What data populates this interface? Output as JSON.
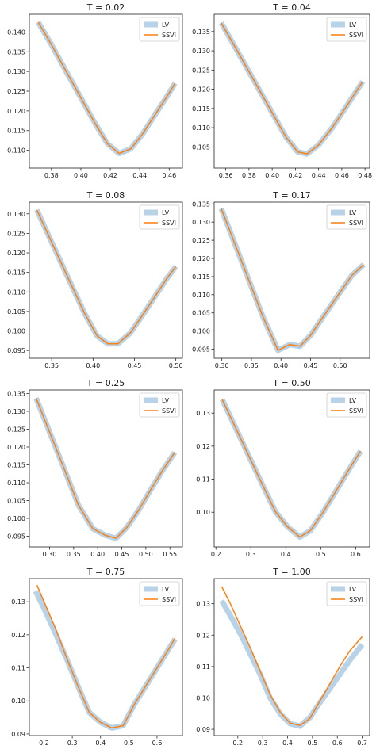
{
  "colors": {
    "lv": "#b8d3e8",
    "ssvi": "#ff7f0e",
    "axis": "#222222",
    "legend_border": "#cccccc"
  },
  "legend": {
    "lv": "LV",
    "ssvi": "SSVI"
  },
  "chart_data": [
    {
      "type": "line",
      "title": "T = 0.02",
      "xlim": [
        0.365,
        0.469
      ],
      "ylim": [
        0.1055,
        0.1445
      ],
      "xticks": [
        0.38,
        0.4,
        0.42,
        0.44,
        0.46
      ],
      "xticklabels": [
        "0.38",
        "0.40",
        "0.42",
        "0.44",
        "0.46"
      ],
      "yticks": [
        0.11,
        0.115,
        0.12,
        0.125,
        0.13,
        0.135,
        0.14
      ],
      "yticklabels": [
        "0.110",
        "0.115",
        "0.120",
        "0.125",
        "0.130",
        "0.135",
        "0.140"
      ],
      "series": [
        {
          "name": "LV",
          "x": [
            0.371,
            0.38,
            0.39,
            0.4,
            0.41,
            0.418,
            0.426,
            0.434,
            0.442,
            0.45,
            0.458,
            0.464
          ],
          "y": [
            0.1425,
            0.1368,
            0.13,
            0.1233,
            0.1166,
            0.1117,
            0.1092,
            0.1104,
            0.1142,
            0.1188,
            0.1234,
            0.127
          ]
        },
        {
          "name": "SSVI",
          "x": [
            0.371,
            0.38,
            0.39,
            0.4,
            0.41,
            0.418,
            0.426,
            0.434,
            0.442,
            0.45,
            0.458,
            0.464
          ],
          "y": [
            0.1425,
            0.1368,
            0.13,
            0.1233,
            0.1166,
            0.1117,
            0.1092,
            0.1104,
            0.1142,
            0.1188,
            0.1234,
            0.127
          ]
        }
      ]
    },
    {
      "type": "line",
      "title": "T = 0.04",
      "xlim": [
        0.35,
        0.484
      ],
      "ylim": [
        0.0995,
        0.1395
      ],
      "xticks": [
        0.36,
        0.38,
        0.4,
        0.42,
        0.44,
        0.46,
        0.48
      ],
      "xticklabels": [
        "0.36",
        "0.38",
        "0.40",
        "0.42",
        "0.44",
        "0.46",
        "0.48"
      ],
      "yticks": [
        0.105,
        0.11,
        0.115,
        0.12,
        0.125,
        0.13,
        0.135
      ],
      "yticklabels": [
        "0.105",
        "0.110",
        "0.115",
        "0.120",
        "0.125",
        "0.130",
        "0.135"
      ],
      "series": [
        {
          "name": "LV",
          "x": [
            0.356,
            0.37,
            0.385,
            0.4,
            0.412,
            0.422,
            0.43,
            0.44,
            0.452,
            0.465,
            0.478
          ],
          "y": [
            0.1373,
            0.1299,
            0.1219,
            0.1139,
            0.1075,
            0.1037,
            0.1032,
            0.1055,
            0.1101,
            0.116,
            0.122
          ]
        },
        {
          "name": "SSVI",
          "x": [
            0.356,
            0.37,
            0.385,
            0.4,
            0.412,
            0.422,
            0.43,
            0.44,
            0.452,
            0.465,
            0.478
          ],
          "y": [
            0.1373,
            0.1299,
            0.1219,
            0.1139,
            0.1075,
            0.1037,
            0.1032,
            0.1055,
            0.1101,
            0.116,
            0.122
          ]
        }
      ]
    },
    {
      "type": "line",
      "title": "T = 0.08",
      "xlim": [
        0.323,
        0.508
      ],
      "ylim": [
        0.093,
        0.133
      ],
      "xticks": [
        0.35,
        0.4,
        0.45,
        0.5
      ],
      "xticklabels": [
        "0.35",
        "0.40",
        "0.45",
        "0.50"
      ],
      "yticks": [
        0.095,
        0.1,
        0.105,
        0.11,
        0.115,
        0.12,
        0.125,
        0.13
      ],
      "yticklabels": [
        "0.095",
        "0.100",
        "0.105",
        "0.110",
        "0.115",
        "0.120",
        "0.125",
        "0.130"
      ],
      "series": [
        {
          "name": "LV",
          "x": [
            0.332,
            0.35,
            0.37,
            0.39,
            0.405,
            0.418,
            0.43,
            0.445,
            0.46,
            0.475,
            0.49,
            0.5
          ],
          "y": [
            0.131,
            0.1227,
            0.1135,
            0.1044,
            0.0987,
            0.0967,
            0.0967,
            0.0995,
            0.1041,
            0.1089,
            0.1137,
            0.1165
          ]
        },
        {
          "name": "SSVI",
          "x": [
            0.332,
            0.35,
            0.37,
            0.39,
            0.405,
            0.418,
            0.43,
            0.445,
            0.46,
            0.475,
            0.49,
            0.5
          ],
          "y": [
            0.131,
            0.1227,
            0.1135,
            0.1044,
            0.0987,
            0.0967,
            0.0967,
            0.0995,
            0.1041,
            0.1089,
            0.1137,
            0.1165
          ]
        }
      ]
    },
    {
      "type": "line",
      "title": "T = 0.17",
      "xlim": [
        0.287,
        0.55
      ],
      "ylim": [
        0.0925,
        0.1355
      ],
      "xticks": [
        0.3,
        0.35,
        0.4,
        0.45,
        0.5
      ],
      "xticklabels": [
        "0.30",
        "0.35",
        "0.40",
        "0.45",
        "0.50"
      ],
      "yticks": [
        0.095,
        0.1,
        0.105,
        0.11,
        0.115,
        0.12,
        0.125,
        0.13,
        0.135
      ],
      "yticklabels": [
        "0.095",
        "0.100",
        "0.105",
        "0.110",
        "0.115",
        "0.120",
        "0.125",
        "0.130",
        "0.135"
      ],
      "series": [
        {
          "name": "LV",
          "x": [
            0.299,
            0.32,
            0.345,
            0.37,
            0.395,
            0.415,
            0.432,
            0.45,
            0.47,
            0.495,
            0.52,
            0.54
          ],
          "y": [
            0.1337,
            0.1249,
            0.1143,
            0.1037,
            0.0947,
            0.0963,
            0.0958,
            0.0988,
            0.1036,
            0.1095,
            0.1153,
            0.1183
          ]
        },
        {
          "name": "SSVI",
          "x": [
            0.299,
            0.32,
            0.345,
            0.37,
            0.395,
            0.415,
            0.432,
            0.45,
            0.47,
            0.495,
            0.52,
            0.54
          ],
          "y": [
            0.1337,
            0.1249,
            0.1143,
            0.1037,
            0.0947,
            0.0963,
            0.0958,
            0.0988,
            0.1036,
            0.1095,
            0.1153,
            0.1183
          ]
        }
      ]
    },
    {
      "type": "line",
      "title": "T = 0.25",
      "xlim": [
        0.258,
        0.576
      ],
      "ylim": [
        0.092,
        0.136
      ],
      "xticks": [
        0.3,
        0.35,
        0.4,
        0.45,
        0.5,
        0.55
      ],
      "xticklabels": [
        "0.30",
        "0.35",
        "0.40",
        "0.45",
        "0.50",
        "0.55"
      ],
      "yticks": [
        0.095,
        0.1,
        0.105,
        0.11,
        0.115,
        0.12,
        0.125,
        0.13,
        0.135
      ],
      "yticklabels": [
        "0.095",
        "0.100",
        "0.105",
        "0.110",
        "0.115",
        "0.120",
        "0.125",
        "0.130",
        "0.135"
      ],
      "series": [
        {
          "name": "LV",
          "x": [
            0.272,
            0.3,
            0.33,
            0.36,
            0.39,
            0.415,
            0.438,
            0.46,
            0.485,
            0.51,
            0.535,
            0.56
          ],
          "y": [
            0.1337,
            0.1242,
            0.114,
            0.1037,
            0.0971,
            0.0953,
            0.0944,
            0.0974,
            0.1023,
            0.108,
            0.1135,
            0.1185
          ]
        },
        {
          "name": "SSVI",
          "x": [
            0.272,
            0.3,
            0.33,
            0.36,
            0.39,
            0.415,
            0.438,
            0.46,
            0.485,
            0.51,
            0.535,
            0.56
          ],
          "y": [
            0.1337,
            0.1242,
            0.114,
            0.1037,
            0.0971,
            0.0953,
            0.0944,
            0.0974,
            0.1023,
            0.108,
            0.1135,
            0.1185
          ]
        }
      ]
    },
    {
      "type": "line",
      "title": "T = 0.50",
      "xlim": [
        0.195,
        0.64
      ],
      "ylim": [
        0.0895,
        0.137
      ],
      "xticks": [
        0.2,
        0.3,
        0.4,
        0.5,
        0.6
      ],
      "xticklabels": [
        "0.2",
        "0.3",
        "0.4",
        "0.5",
        "0.6"
      ],
      "yticks": [
        0.1,
        0.11,
        0.12,
        0.13
      ],
      "yticklabels": [
        "0.10",
        "0.11",
        "0.12",
        "0.13"
      ],
      "series": [
        {
          "name": "LV",
          "x": [
            0.218,
            0.25,
            0.29,
            0.33,
            0.37,
            0.405,
            0.44,
            0.47,
            0.505,
            0.54,
            0.58,
            0.614
          ],
          "y": [
            0.1341,
            0.127,
            0.118,
            0.109,
            0.1002,
            0.0956,
            0.0925,
            0.0944,
            0.0997,
            0.1058,
            0.1128,
            0.1185
          ]
        },
        {
          "name": "SSVI",
          "x": [
            0.218,
            0.25,
            0.29,
            0.33,
            0.37,
            0.405,
            0.44,
            0.47,
            0.505,
            0.54,
            0.58,
            0.614
          ],
          "y": [
            0.1341,
            0.127,
            0.118,
            0.109,
            0.1002,
            0.0956,
            0.0925,
            0.0944,
            0.0997,
            0.1058,
            0.1128,
            0.1185
          ]
        }
      ]
    },
    {
      "type": "line",
      "title": "T = 0.75",
      "xlim": [
        0.148,
        0.69
      ],
      "ylim": [
        0.0895,
        0.137
      ],
      "xticks": [
        0.2,
        0.3,
        0.4,
        0.5,
        0.6
      ],
      "xticklabels": [
        "0.2",
        "0.3",
        "0.4",
        "0.5",
        "0.6"
      ],
      "yticks": [
        0.09,
        0.1,
        0.11,
        0.12,
        0.13
      ],
      "yticklabels": [
        "0.09",
        "0.10",
        "0.11",
        "0.12",
        "0.13"
      ],
      "series": [
        {
          "name": "LV",
          "x": [
            0.17,
            0.2,
            0.24,
            0.28,
            0.32,
            0.36,
            0.4,
            0.44,
            0.48,
            0.52,
            0.56,
            0.6,
            0.64,
            0.664
          ],
          "y": [
            0.1332,
            0.128,
            0.1205,
            0.1127,
            0.1045,
            0.0965,
            0.0935,
            0.0918,
            0.0925,
            0.099,
            0.1045,
            0.11,
            0.1155,
            0.1187
          ]
        },
        {
          "name": "SSVI",
          "x": [
            0.175,
            0.2,
            0.24,
            0.28,
            0.32,
            0.36,
            0.4,
            0.44,
            0.48,
            0.52,
            0.56,
            0.6,
            0.64,
            0.664
          ],
          "y": [
            0.135,
            0.13,
            0.122,
            0.113,
            0.1045,
            0.0965,
            0.0935,
            0.0918,
            0.0925,
            0.099,
            0.1045,
            0.11,
            0.1155,
            0.119
          ]
        }
      ]
    },
    {
      "type": "line",
      "title": "T = 1.00",
      "xlim": [
        0.105,
        0.73
      ],
      "ylim": [
        0.088,
        0.138
      ],
      "xticks": [
        0.2,
        0.3,
        0.4,
        0.5,
        0.6,
        0.7
      ],
      "xticklabels": [
        "0.2",
        "0.3",
        "0.4",
        "0.5",
        "0.6",
        "0.7"
      ],
      "yticks": [
        0.09,
        0.1,
        0.11,
        0.12,
        0.13
      ],
      "yticklabels": [
        "0.09",
        "0.10",
        "0.11",
        "0.12",
        "0.13"
      ],
      "series": [
        {
          "name": "LV",
          "x": [
            0.135,
            0.17,
            0.21,
            0.25,
            0.29,
            0.33,
            0.37,
            0.41,
            0.45,
            0.49,
            0.53,
            0.57,
            0.61,
            0.65,
            0.7
          ],
          "y": [
            0.131,
            0.1262,
            0.1205,
            0.114,
            0.1075,
            0.1,
            0.095,
            0.0918,
            0.091,
            0.0938,
            0.0985,
            0.103,
            0.1075,
            0.112,
            0.117
          ]
        },
        {
          "name": "SSVI",
          "x": [
            0.135,
            0.17,
            0.21,
            0.25,
            0.29,
            0.33,
            0.37,
            0.41,
            0.45,
            0.49,
            0.53,
            0.57,
            0.61,
            0.65,
            0.7
          ],
          "y": [
            0.1355,
            0.13,
            0.123,
            0.116,
            0.1085,
            0.101,
            0.0955,
            0.092,
            0.0912,
            0.0935,
            0.099,
            0.1045,
            0.11,
            0.115,
            0.1195
          ]
        }
      ]
    }
  ]
}
